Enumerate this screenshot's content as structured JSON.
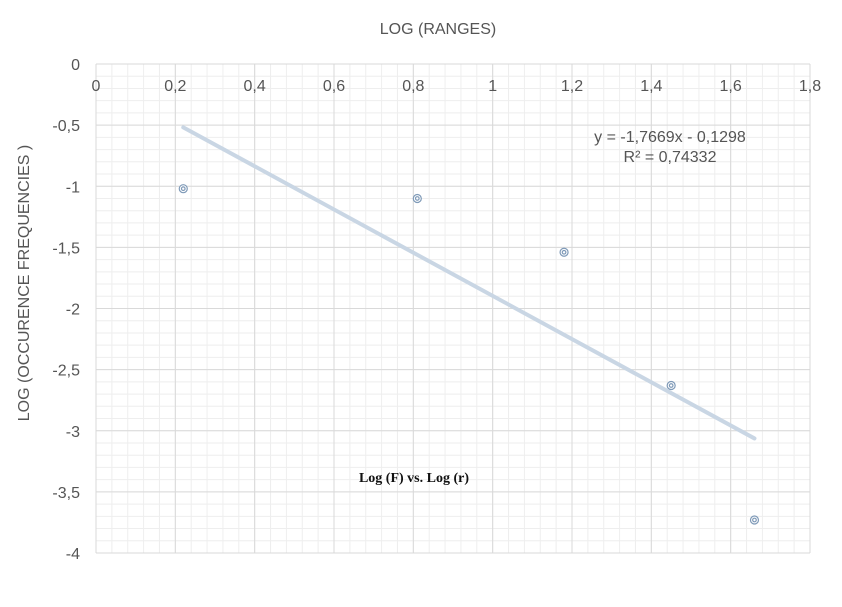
{
  "chart_data": {
    "type": "scatter",
    "title": "",
    "xlabel": "LOG (RANGES)",
    "ylabel": "LOG (OCCURENCE FREQUENCIES )",
    "xlim": [
      0,
      1.8
    ],
    "ylim": [
      -4,
      0
    ],
    "x_ticks": [
      "0",
      "0,2",
      "0,4",
      "0,6",
      "0,8",
      "1",
      "1,2",
      "1,4",
      "1,6",
      "1,8"
    ],
    "y_ticks": [
      "0",
      "-0,5",
      "-1",
      "-1,5",
      "-2",
      "-2,5",
      "-3",
      "-3,5",
      "-4"
    ],
    "grid": true,
    "legend": "none",
    "points": [
      {
        "x": 0.22,
        "y": -1.02
      },
      {
        "x": 0.81,
        "y": -1.1
      },
      {
        "x": 1.18,
        "y": -1.54
      },
      {
        "x": 1.45,
        "y": -2.63
      },
      {
        "x": 1.66,
        "y": -3.73
      }
    ],
    "trendline": {
      "slope": -1.7669,
      "intercept": -0.1298,
      "x_range": [
        0.22,
        1.66
      ],
      "equation": "y = -1,7669x - 0,1298",
      "r_squared": "R² = 0,74332"
    },
    "annotation": "Log (F)  vs.  Log (r)",
    "colors": {
      "marker": "#7f9ab8",
      "trendline": "#c9d6e4",
      "grid_major": "#d9d9d9",
      "grid_minor": "#eeeeee"
    }
  }
}
